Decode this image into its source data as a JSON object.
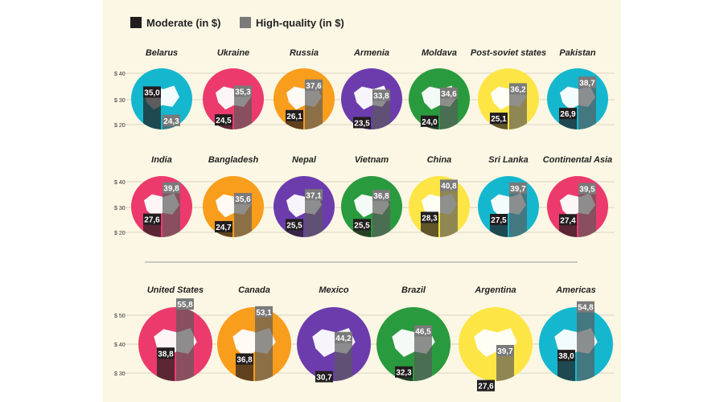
{
  "legend": [
    {
      "label": "Moderate (in $)",
      "color": "#221e1f"
    },
    {
      "label": "High-quality (in $)",
      "color": "#7a7a7a"
    }
  ],
  "colors": {
    "pink": "#ec3a6d",
    "cyan": "#15b7cf",
    "orange": "#f99d1c",
    "purple": "#6c3cad",
    "green": "#2a9a3e",
    "yellow": "#fde545"
  },
  "chart_data": [
    {
      "type": "bar",
      "title": "",
      "ylabel": "",
      "yticks": [
        "$ 40",
        "$ 30",
        "$ 20"
      ],
      "ylim": [
        15,
        45
      ],
      "categories": [
        "Belarus",
        "Ukraine",
        "Russia",
        "Armenia",
        "Moldava",
        "Post-soviet states",
        "Pakistan"
      ],
      "circle_colors": [
        "cyan",
        "pink",
        "orange",
        "purple",
        "green",
        "yellow",
        "cyan"
      ],
      "series": [
        {
          "name": "Moderate (in $)",
          "values": [
            35.0,
            24.5,
            26.1,
            23.5,
            24.0,
            25.1,
            26.9
          ],
          "labels": [
            "35,0",
            "24,5",
            "26,1",
            "23,5",
            "24,0",
            "25,1",
            "26,9"
          ]
        },
        {
          "name": "High-quality (in $)",
          "values": [
            24.3,
            35.3,
            37.6,
            33.8,
            34.6,
            36.2,
            38.7
          ],
          "labels": [
            "24,3",
            "35,3",
            "37,6",
            "33,8",
            "34,6",
            "36,2",
            "38,7"
          ]
        }
      ]
    },
    {
      "type": "bar",
      "title": "",
      "ylabel": "",
      "yticks": [
        "$ 40",
        "$ 30",
        "$ 20"
      ],
      "ylim": [
        15,
        45
      ],
      "categories": [
        "India",
        "Bangladesh",
        "Nepal",
        "Vietnam",
        "China",
        "Sri Lanka",
        "Continental Asia"
      ],
      "circle_colors": [
        "pink",
        "orange",
        "purple",
        "green",
        "yellow",
        "cyan",
        "pink"
      ],
      "series": [
        {
          "name": "Moderate (in $)",
          "values": [
            27.6,
            24.7,
            25.5,
            25.5,
            28.3,
            27.5,
            27.4
          ],
          "labels": [
            "27,6",
            "24,7",
            "25,5",
            "25,5",
            "28,3",
            "27,5",
            "27,4"
          ]
        },
        {
          "name": "High-quality (in $)",
          "values": [
            39.8,
            35.6,
            37.1,
            36.8,
            40.8,
            39.7,
            39.5
          ],
          "labels": [
            "39,8",
            "35,6",
            "37,1",
            "36,8",
            "40,8",
            "39,7",
            "39,5"
          ]
        }
      ]
    },
    {
      "type": "bar",
      "title": "",
      "ylabel": "",
      "yticks": [
        "$ 50",
        "$ 40",
        "$ 30"
      ],
      "ylim": [
        25,
        55
      ],
      "categories": [
        "United States",
        "Canada",
        "Mexico",
        "Brazil",
        "Argentina",
        "Americas"
      ],
      "circle_colors": [
        "pink",
        "orange",
        "purple",
        "green",
        "yellow",
        "cyan"
      ],
      "series": [
        {
          "name": "Moderate (in $)",
          "values": [
            38.8,
            36.8,
            30.7,
            32.3,
            27.6,
            38.0
          ],
          "labels": [
            "38,8",
            "36,8",
            "30,7",
            "32,3",
            "27,6",
            "38,0"
          ]
        },
        {
          "name": "High-quality (in $)",
          "values": [
            55.8,
            53.1,
            44.2,
            46.5,
            39.7,
            54.8
          ],
          "labels": [
            "55,8",
            "53,1",
            "44,2",
            "46,5",
            "39,7",
            "54,8"
          ]
        }
      ]
    }
  ]
}
